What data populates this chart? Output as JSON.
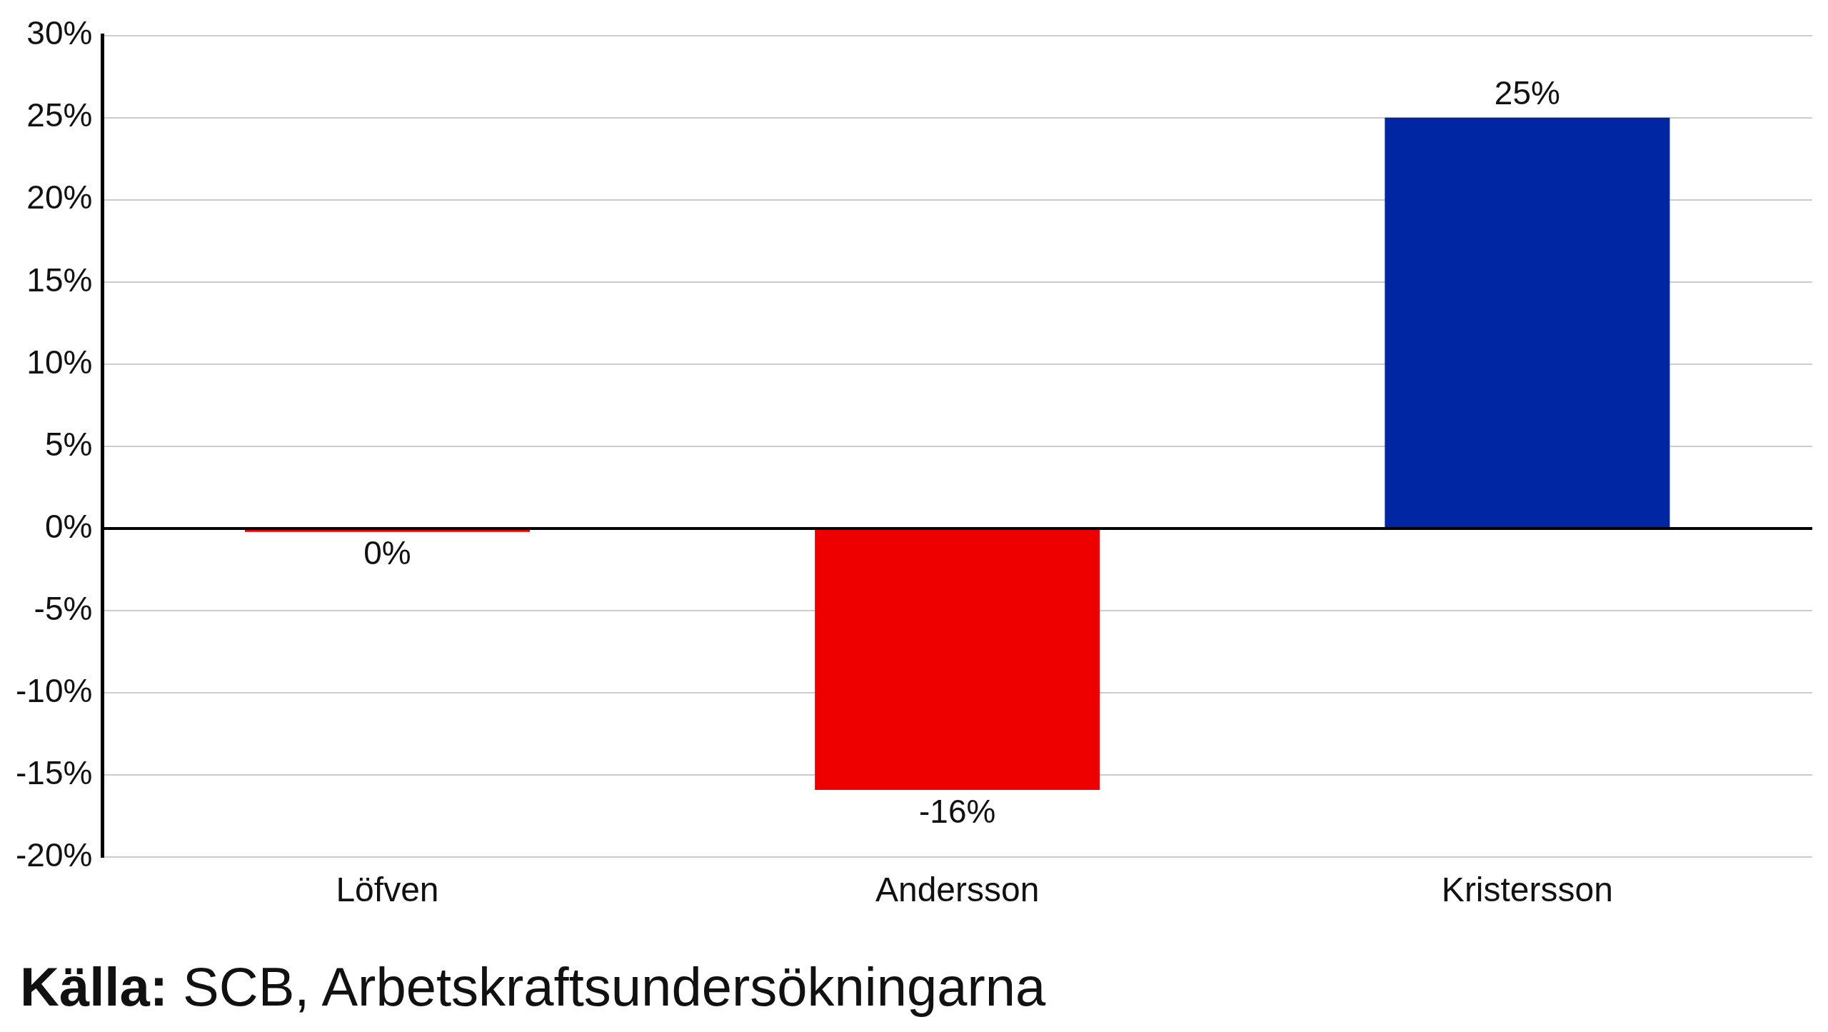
{
  "chart_data": {
    "type": "bar",
    "categories": [
      "Löfven",
      "Andersson",
      "Kristersson"
    ],
    "values": [
      -0.2,
      -15.9,
      25
    ],
    "colors": [
      "#ee0000",
      "#ee0000",
      "#0026a3"
    ],
    "value_labels": [
      "0%",
      "-16%",
      "25%"
    ],
    "ylim": [
      -20,
      30
    ],
    "yticks": [
      {
        "value": -20,
        "label": "-20%"
      },
      {
        "value": -15,
        "label": "-15%"
      },
      {
        "value": -10,
        "label": "-10%"
      },
      {
        "value": -5,
        "label": "-5%"
      },
      {
        "value": 0,
        "label": "0%"
      },
      {
        "value": 5,
        "label": "5%"
      },
      {
        "value": 10,
        "label": "10%"
      },
      {
        "value": 15,
        "label": "15%"
      },
      {
        "value": 20,
        "label": "20%"
      },
      {
        "value": 25,
        "label": "25%"
      },
      {
        "value": 30,
        "label": "30%"
      }
    ],
    "grid": "y",
    "legend": false,
    "annotations": [
      "Källa: SCB, Arbetskraftsundersökningarna"
    ]
  }
}
